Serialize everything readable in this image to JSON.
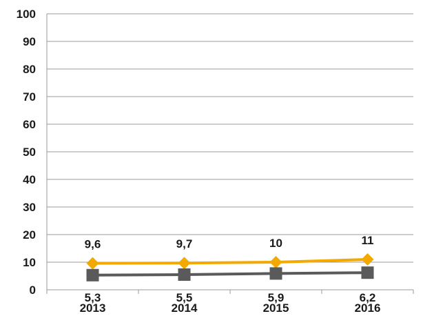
{
  "chart_data": {
    "type": "line",
    "categories": [
      "2013",
      "2014",
      "2015",
      "2016"
    ],
    "series": [
      {
        "values": [
          9.6,
          9.7,
          10,
          11
        ],
        "data_labels": [
          "9,6",
          "9,7",
          "10",
          "11"
        ],
        "color": "#f2a900",
        "marker": "diamond"
      },
      {
        "values": [
          5.3,
          5.5,
          5.9,
          6.2
        ],
        "data_labels": [
          "5,3",
          "5,5",
          "5,9",
          "6,2"
        ],
        "color": "#5a5a5a",
        "marker": "square"
      }
    ],
    "yticks": [
      "0",
      "10",
      "20",
      "30",
      "40",
      "50",
      "60",
      "70",
      "80",
      "90",
      "100"
    ],
    "ylim": [
      0,
      100
    ],
    "grid": true,
    "legend": "none"
  }
}
